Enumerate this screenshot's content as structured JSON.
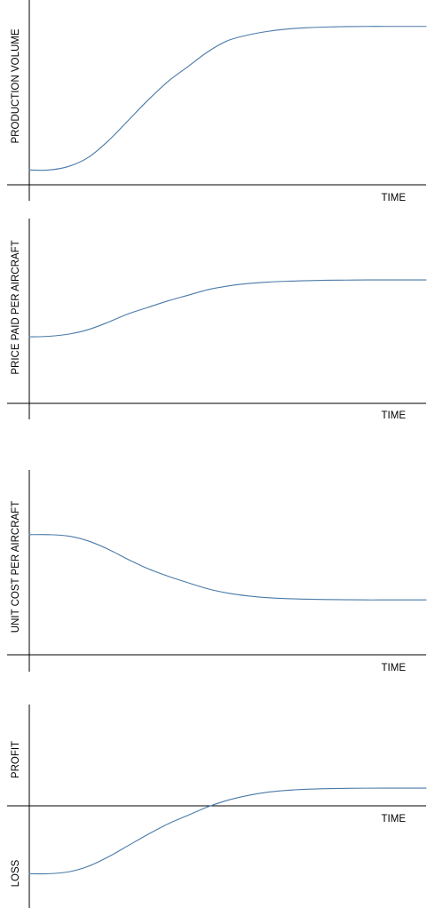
{
  "colors": {
    "curve": "#4a7aa7",
    "axis": "#000000",
    "background": "#ffffff"
  },
  "chart_data": [
    {
      "type": "line",
      "title": "",
      "xlabel": "TIME",
      "ylabel": "PRODUCTION VOLUME",
      "grid": false,
      "legend": "none",
      "xlim": [
        0,
        100
      ],
      "ylim": [
        0,
        100
      ],
      "series": [
        {
          "x": [
            0,
            5,
            10,
            15,
            20,
            25,
            30,
            35,
            40,
            45,
            50,
            55,
            60,
            65,
            70,
            75,
            80,
            85,
            90,
            95,
            100
          ],
          "y": [
            8,
            8,
            10,
            15,
            24,
            35,
            46,
            56,
            64,
            72,
            78,
            81,
            83,
            84.3,
            85,
            85.4,
            85.6,
            85.7,
            85.7,
            85.7,
            85.7
          ]
        }
      ]
    },
    {
      "type": "line",
      "title": "",
      "xlabel": "TIME",
      "ylabel": "PRICE PAID PER AIRCRAFT",
      "grid": false,
      "legend": "none",
      "xlim": [
        0,
        100
      ],
      "ylim": [
        0,
        100
      ],
      "series": [
        {
          "x": [
            0,
            5,
            10,
            15,
            20,
            25,
            30,
            35,
            40,
            45,
            50,
            55,
            60,
            65,
            70,
            75,
            80,
            85,
            90,
            95,
            100
          ],
          "y": [
            36,
            36.3,
            37.5,
            40,
            44,
            48.5,
            52,
            55.5,
            58.5,
            61.5,
            63.5,
            64.8,
            65.6,
            66.1,
            66.4,
            66.6,
            66.7,
            66.8,
            66.8,
            66.8,
            66.8
          ]
        }
      ]
    },
    {
      "type": "line",
      "title": "",
      "xlabel": "TIME",
      "ylabel": "UNIT COST PER AIRCRAFT",
      "grid": false,
      "legend": "none",
      "xlim": [
        0,
        100
      ],
      "ylim": [
        0,
        100
      ],
      "series": [
        {
          "x": [
            0,
            5,
            10,
            15,
            20,
            25,
            30,
            35,
            40,
            45,
            50,
            55,
            60,
            65,
            70,
            75,
            80,
            85,
            90,
            95,
            100
          ],
          "y": [
            65,
            65,
            64.2,
            61.5,
            57,
            51.5,
            46.5,
            42.5,
            39,
            35.7,
            33.4,
            31.9,
            30.9,
            30.4,
            30.1,
            29.9,
            29.8,
            29.7,
            29.7,
            29.7,
            29.7
          ]
        }
      ]
    },
    {
      "type": "line",
      "title": "",
      "xlabel": "TIME",
      "ylabel": "",
      "annotations": [
        "PROFIT",
        "LOSS"
      ],
      "grid": false,
      "legend": "none",
      "xlim": [
        0,
        100
      ],
      "ylim": [
        -100,
        100
      ],
      "series": [
        {
          "x": [
            0,
            5,
            10,
            15,
            20,
            25,
            30,
            35,
            40,
            45,
            50,
            55,
            60,
            65,
            70,
            75,
            80,
            85,
            90,
            95,
            100
          ],
          "y": [
            -73,
            -73,
            -71,
            -65,
            -55,
            -43,
            -31,
            -20,
            -11,
            -2,
            5,
            10,
            13.5,
            15.5,
            16.7,
            17.3,
            17.6,
            17.8,
            17.9,
            17.9,
            17.9
          ]
        }
      ]
    }
  ]
}
